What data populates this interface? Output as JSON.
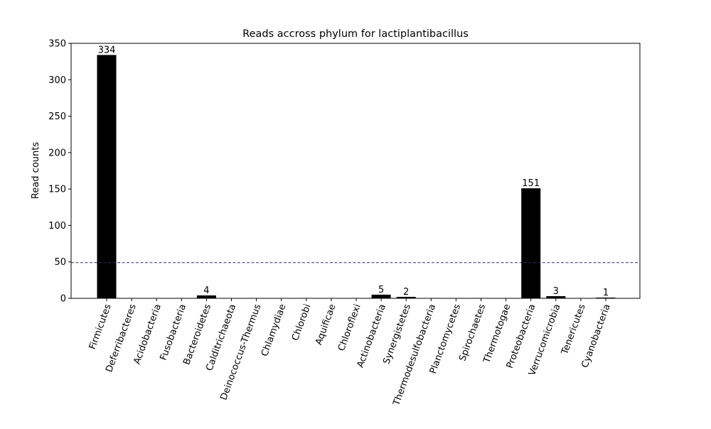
{
  "chart_data": {
    "type": "bar",
    "title": "Reads accross phylum for lactiplantibacillus",
    "xlabel": "",
    "ylabel": "Read counts",
    "ylim": [
      0,
      350
    ],
    "yticks": [
      0,
      50,
      100,
      150,
      200,
      250,
      300,
      350
    ],
    "grid": false,
    "bar_color": "#000000",
    "threshold": {
      "value": 49,
      "color": "#2f2f6e",
      "style": "dashed"
    },
    "categories": [
      "Firmicutes",
      "Deferribacteres",
      "Acidobacteria",
      "Fusobacteria",
      "Bacteroidetes",
      "Calditrichaeota",
      "Deinococcus-Thermus",
      "Chlamydiae",
      "Chlorobi",
      "Aquificae",
      "Chloroflexi",
      "Actinobacteria",
      "Synergistetes",
      "Thermodesulfobacteria",
      "Planctomycetes",
      "Spirochaetes",
      "Thermotogae",
      "Proteobacteria",
      "Verrucomicrobia",
      "Tenericutes",
      "Cyanobacteria"
    ],
    "values": [
      334,
      0,
      0,
      0,
      4,
      0,
      0,
      0,
      0,
      0,
      0,
      5,
      2,
      0,
      0,
      0,
      0,
      151,
      3,
      0,
      1
    ],
    "data_labels": [
      "334",
      "",
      "",
      "",
      "4",
      "",
      "",
      "",
      "",
      "",
      "",
      "5",
      "2",
      "",
      "",
      "",
      "",
      "151",
      "3",
      "",
      "1"
    ]
  }
}
